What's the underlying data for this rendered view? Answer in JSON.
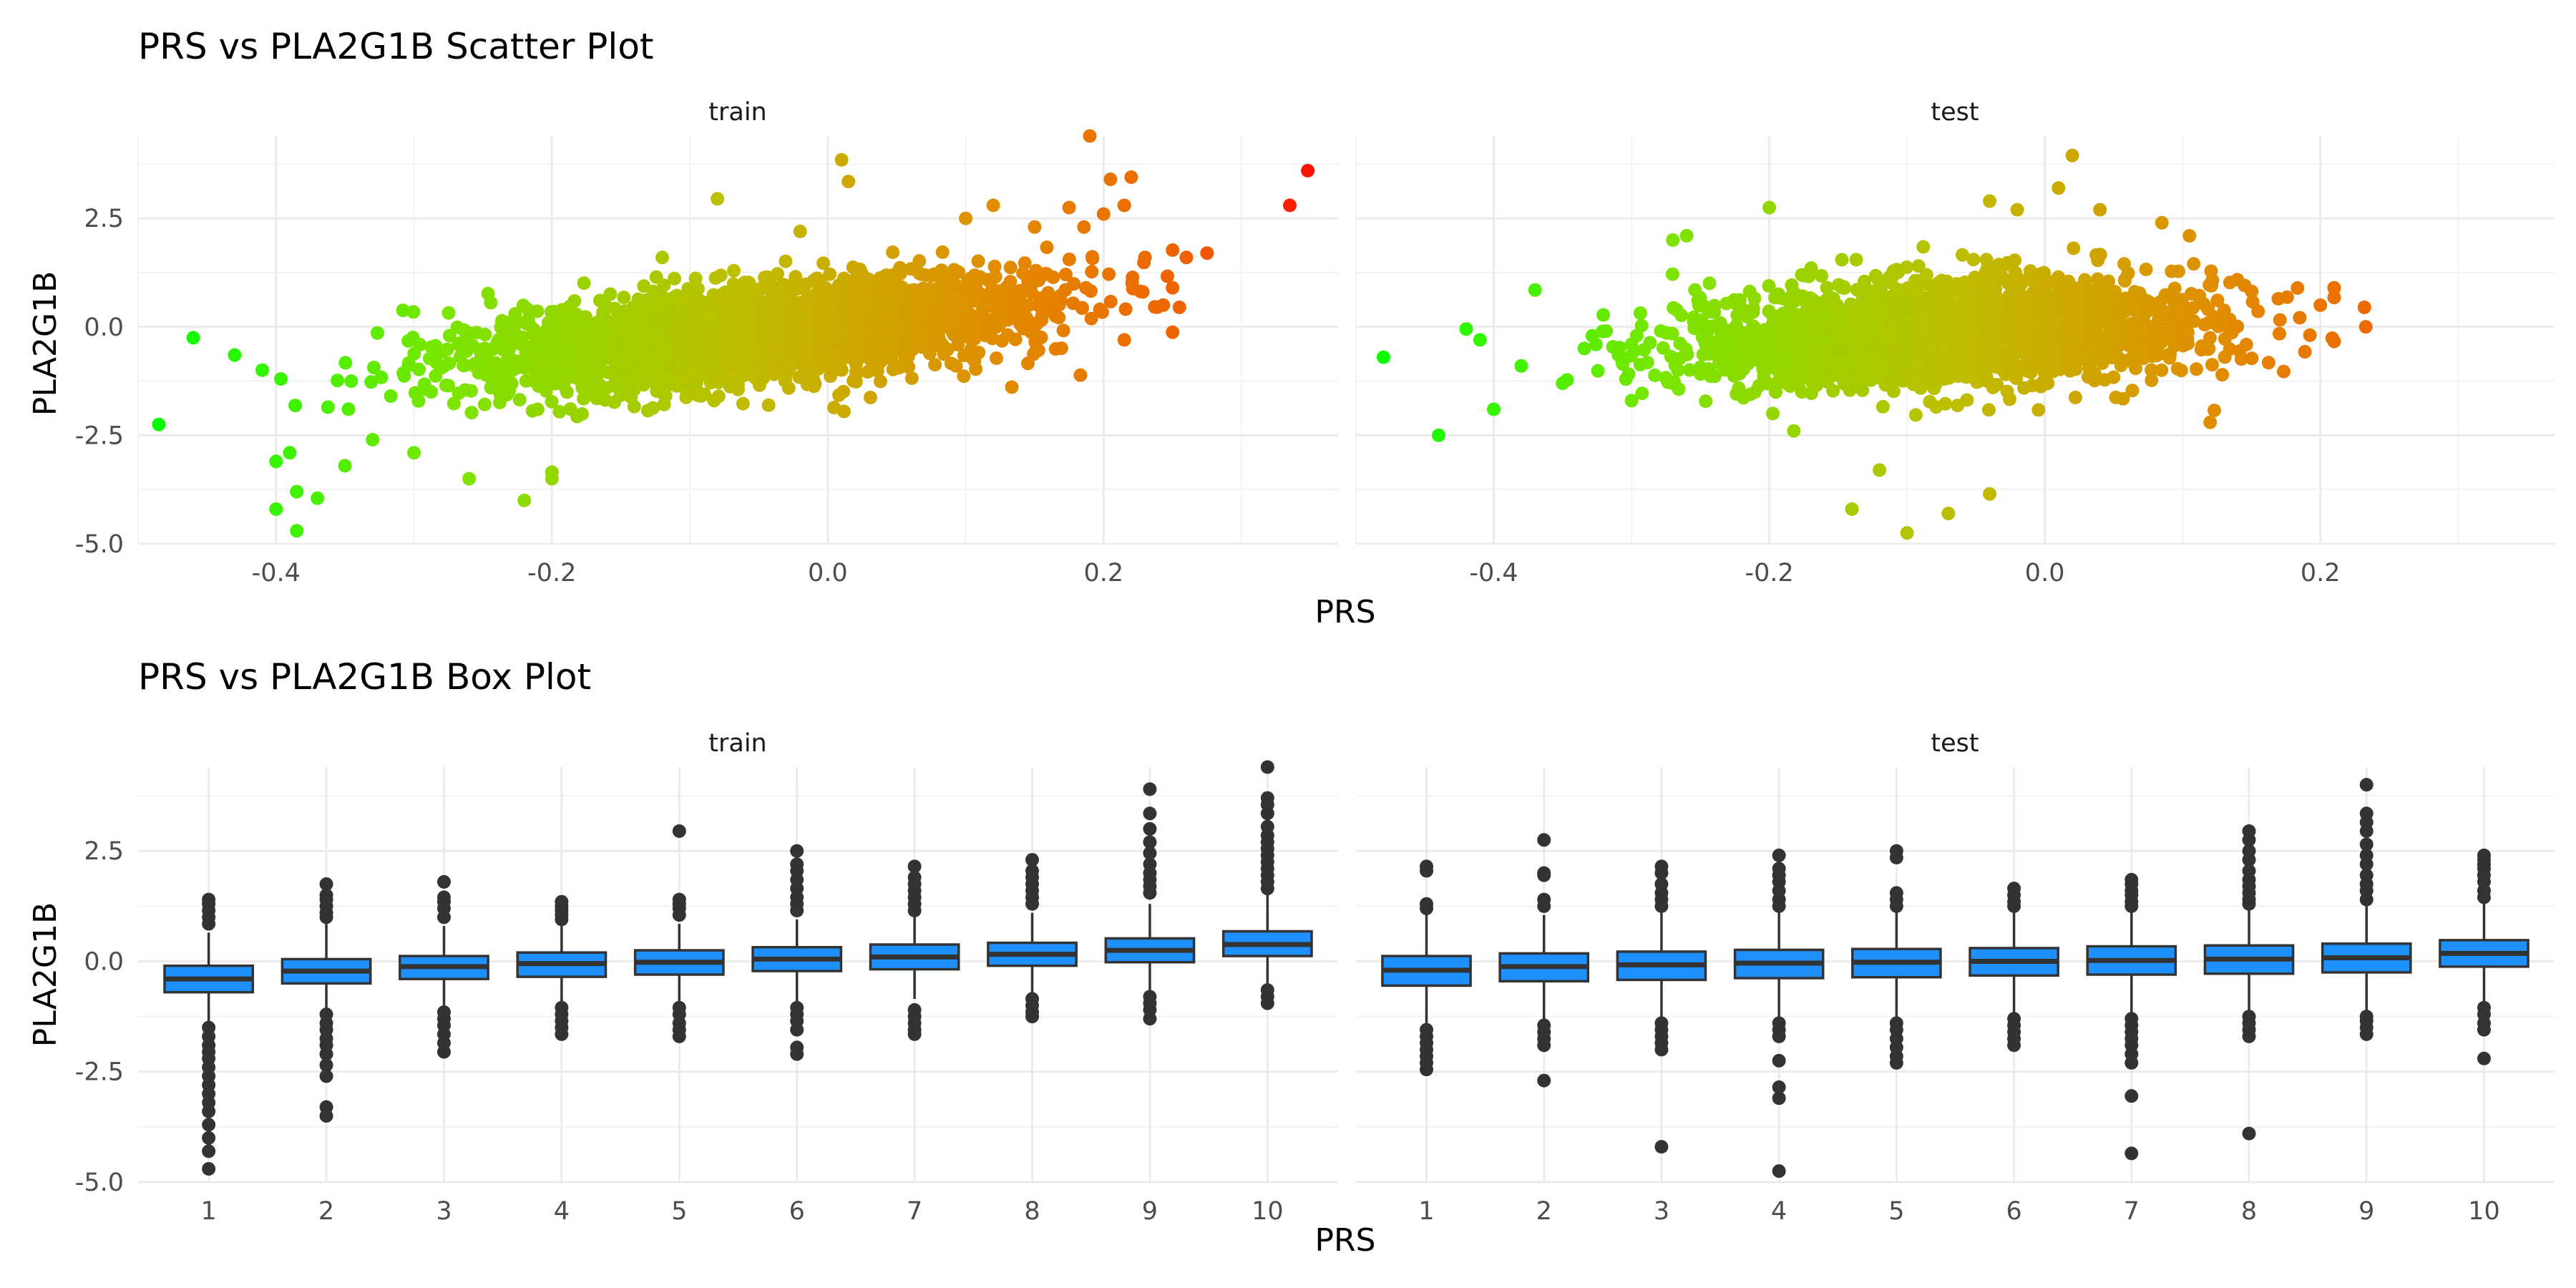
{
  "scatter_section": {
    "title": "PRS vs PLA2G1B Scatter Plot",
    "xlabel": "PRS",
    "ylabel": "PLA2G1B"
  },
  "box_section": {
    "title": "PRS vs PLA2G1B Box Plot",
    "xlabel": "PRS",
    "ylabel": "PLA2G1B"
  },
  "chart_data": [
    {
      "type": "scatter",
      "title": "PRS vs PLA2G1B Scatter Plot",
      "xlabel": "PRS",
      "ylabel": "PLA2G1B",
      "xlim": [
        -0.5,
        0.37
      ],
      "ylim": [
        -5.0,
        4.4
      ],
      "x_ticks": [
        -0.4,
        -0.2,
        0.0,
        0.2
      ],
      "y_ticks": [
        -5.0,
        -2.5,
        0.0,
        2.5
      ],
      "grid": true,
      "color_scale": {
        "low": "#00ff00",
        "high": "#ff0000",
        "mapped_to": "x"
      },
      "panels": [
        {
          "name": "train",
          "bulk": {
            "n": 2600,
            "x_mean": -0.05,
            "x_sd": 0.1,
            "x_min": -0.46,
            "x_max": 0.25,
            "slope": 2.9,
            "residual_sd": 0.55
          },
          "points": [
            [
              -0.485,
              -2.25
            ],
            [
              -0.46,
              -0.25
            ],
            [
              -0.43,
              -0.65
            ],
            [
              -0.41,
              -1.0
            ],
            [
              -0.4,
              -3.1
            ],
            [
              -0.39,
              -2.9
            ],
            [
              -0.4,
              -4.2
            ],
            [
              -0.385,
              -3.8
            ],
            [
              -0.385,
              -4.7
            ],
            [
              -0.37,
              -3.95
            ],
            [
              -0.35,
              -3.2
            ],
            [
              -0.33,
              -2.6
            ],
            [
              -0.3,
              -2.9
            ],
            [
              -0.26,
              -3.5
            ],
            [
              -0.22,
              -4.0
            ],
            [
              -0.2,
              -3.5
            ],
            [
              -0.2,
              -3.35
            ],
            [
              -0.08,
              2.95
            ],
            [
              0.01,
              3.85
            ],
            [
              0.015,
              3.35
            ],
            [
              0.19,
              4.4
            ],
            [
              0.205,
              3.4
            ],
            [
              0.22,
              3.45
            ],
            [
              0.2,
              2.6
            ],
            [
              0.215,
              2.8
            ],
            [
              0.175,
              2.75
            ],
            [
              0.26,
              1.6
            ],
            [
              0.275,
              1.7
            ],
            [
              0.25,
              0.9
            ],
            [
              0.255,
              0.45
            ],
            [
              0.23,
              1.6
            ],
            [
              0.215,
              -0.3
            ],
            [
              0.335,
              2.8
            ],
            [
              0.348,
              3.6
            ],
            [
              0.1,
              2.5
            ],
            [
              0.12,
              2.8
            ],
            [
              0.15,
              2.3
            ],
            [
              -0.02,
              2.2
            ],
            [
              -0.12,
              1.6
            ]
          ]
        },
        {
          "name": "test",
          "bulk": {
            "n": 2200,
            "x_mean": -0.07,
            "x_sd": 0.095,
            "x_min": -0.43,
            "x_max": 0.21,
            "slope": 1.5,
            "residual_sd": 0.6
          },
          "points": [
            [
              -0.48,
              -0.7
            ],
            [
              -0.44,
              -2.5
            ],
            [
              -0.42,
              -0.05
            ],
            [
              -0.4,
              -1.9
            ],
            [
              -0.41,
              -0.3
            ],
            [
              -0.38,
              -0.9
            ],
            [
              -0.37,
              0.85
            ],
            [
              -0.35,
              -1.3
            ],
            [
              -0.27,
              2.0
            ],
            [
              -0.26,
              2.1
            ],
            [
              -0.2,
              2.75
            ],
            [
              -0.14,
              -4.2
            ],
            [
              -0.12,
              -3.3
            ],
            [
              -0.1,
              -4.75
            ],
            [
              -0.07,
              -4.3
            ],
            [
              -0.04,
              -3.85
            ],
            [
              0.02,
              3.95
            ],
            [
              0.01,
              3.2
            ],
            [
              -0.04,
              2.9
            ],
            [
              -0.02,
              2.7
            ],
            [
              0.04,
              2.7
            ],
            [
              0.085,
              2.4
            ],
            [
              0.105,
              2.1
            ],
            [
              0.12,
              -2.2
            ],
            [
              0.2,
              0.5
            ],
            [
              0.232,
              0.45
            ],
            [
              0.233,
              0.0
            ],
            [
              -0.3,
              -1.7
            ],
            [
              -0.27,
              -1.3
            ]
          ]
        }
      ]
    },
    {
      "type": "box",
      "title": "PRS vs PLA2G1B Box Plot",
      "xlabel": "PRS",
      "ylabel": "PLA2G1B",
      "categories": [
        "1",
        "2",
        "3",
        "4",
        "5",
        "6",
        "7",
        "8",
        "9",
        "10"
      ],
      "ylim": [
        -5.0,
        4.4
      ],
      "y_ticks": [
        -5.0,
        -2.5,
        0.0,
        2.5
      ],
      "grid": true,
      "box_fill": "#1e90ff",
      "line_color": "#333333",
      "panels": [
        {
          "name": "train",
          "boxes": [
            {
              "q1": -0.7,
              "median": -0.4,
              "q3": -0.1,
              "lw": -1.35,
              "uw": 0.65,
              "outliers": [
                1.4,
                1.3,
                1.15,
                1.0,
                0.85,
                -1.5,
                -1.7,
                -1.9,
                -2.05,
                -2.2,
                -2.4,
                -2.6,
                -2.8,
                -3.0,
                -3.2,
                -3.4,
                -3.7,
                -4.0,
                -4.3,
                -4.7
              ]
            },
            {
              "q1": -0.5,
              "median": -0.22,
              "q3": 0.05,
              "lw": -1.05,
              "uw": 0.85,
              "outliers": [
                1.75,
                1.5,
                1.4,
                1.25,
                1.1,
                1.0,
                -1.2,
                -1.4,
                -1.55,
                -1.75,
                -1.9,
                -2.1,
                -2.35,
                -2.6,
                -3.3,
                -3.5
              ]
            },
            {
              "q1": -0.4,
              "median": -0.12,
              "q3": 0.12,
              "lw": -1.0,
              "uw": 0.8,
              "outliers": [
                1.8,
                1.45,
                1.35,
                1.2,
                1.0,
                -1.15,
                -1.3,
                -1.45,
                -1.65,
                -1.85,
                -2.05
              ]
            },
            {
              "q1": -0.35,
              "median": -0.05,
              "q3": 0.2,
              "lw": -0.95,
              "uw": 0.8,
              "outliers": [
                1.35,
                1.25,
                1.15,
                1.05,
                0.95,
                -1.05,
                -1.2,
                -1.35,
                -1.5,
                -1.65
              ]
            },
            {
              "q1": -0.3,
              "median": -0.02,
              "q3": 0.25,
              "lw": -0.95,
              "uw": 0.85,
              "outliers": [
                2.95,
                1.4,
                1.3,
                1.2,
                1.05,
                -1.05,
                -1.2,
                -1.4,
                -1.55,
                -1.7
              ]
            },
            {
              "q1": -0.22,
              "median": 0.05,
              "q3": 0.32,
              "lw": -0.9,
              "uw": 0.95,
              "outliers": [
                2.5,
                2.2,
                2.05,
                1.85,
                1.65,
                1.45,
                1.3,
                1.15,
                -1.05,
                -1.2,
                -1.35,
                -1.55,
                -1.95,
                -2.1
              ]
            },
            {
              "q1": -0.18,
              "median": 0.1,
              "q3": 0.38,
              "lw": -0.85,
              "uw": 1.0,
              "outliers": [
                2.15,
                1.9,
                1.75,
                1.6,
                1.45,
                1.3,
                1.15,
                -1.1,
                -1.25,
                -1.4,
                -1.55,
                -1.65
              ]
            },
            {
              "q1": -0.1,
              "median": 0.16,
              "q3": 0.42,
              "lw": -0.75,
              "uw": 1.1,
              "outliers": [
                2.3,
                2.05,
                1.9,
                1.75,
                1.6,
                1.45,
                1.3,
                -0.85,
                -1.0,
                -1.15,
                -1.25
              ]
            },
            {
              "q1": -0.02,
              "median": 0.25,
              "q3": 0.52,
              "lw": -0.8,
              "uw": 1.3,
              "outliers": [
                3.9,
                3.35,
                3.0,
                2.7,
                2.45,
                2.2,
                2.0,
                1.85,
                1.7,
                1.55,
                -0.8,
                -0.95,
                -1.1,
                -1.3
              ]
            },
            {
              "q1": 0.12,
              "median": 0.38,
              "q3": 0.68,
              "lw": -0.5,
              "uw": 1.5,
              "outliers": [
                4.4,
                3.7,
                3.55,
                3.35,
                3.05,
                2.85,
                2.7,
                2.55,
                2.4,
                2.25,
                2.1,
                1.95,
                1.8,
                1.65,
                -0.65,
                -0.8,
                -0.95
              ]
            }
          ]
        },
        {
          "name": "test",
          "boxes": [
            {
              "q1": -0.55,
              "median": -0.2,
              "q3": 0.12,
              "lw": -1.45,
              "uw": 1.05,
              "outliers": [
                2.15,
                2.05,
                1.3,
                1.2,
                -1.55,
                -1.7,
                -1.85,
                -2.0,
                -2.15,
                -2.3,
                -2.45
              ]
            },
            {
              "q1": -0.45,
              "median": -0.12,
              "q3": 0.18,
              "lw": -1.35,
              "uw": 1.05,
              "outliers": [
                2.75,
                2.0,
                1.95,
                1.4,
                1.25,
                -1.45,
                -1.6,
                -1.75,
                -1.9,
                -2.7
              ]
            },
            {
              "q1": -0.42,
              "median": -0.08,
              "q3": 0.22,
              "lw": -1.3,
              "uw": 1.1,
              "outliers": [
                2.15,
                2.0,
                1.75,
                1.55,
                1.4,
                1.25,
                -1.4,
                -1.55,
                -1.7,
                -1.85,
                -2.0,
                -4.2
              ]
            },
            {
              "q1": -0.38,
              "median": -0.04,
              "q3": 0.26,
              "lw": -1.3,
              "uw": 1.15,
              "outliers": [
                2.4,
                2.1,
                1.95,
                1.8,
                1.6,
                1.4,
                1.25,
                -1.4,
                -1.55,
                -1.7,
                -2.25,
                -2.85,
                -3.1,
                -4.75
              ]
            },
            {
              "q1": -0.36,
              "median": -0.02,
              "q3": 0.28,
              "lw": -1.25,
              "uw": 1.15,
              "outliers": [
                2.5,
                2.35,
                1.55,
                1.4,
                1.25,
                -1.4,
                -1.55,
                -1.75,
                -1.95,
                -2.15,
                -2.3
              ]
            },
            {
              "q1": -0.32,
              "median": 0.0,
              "q3": 0.3,
              "lw": -1.2,
              "uw": 1.15,
              "outliers": [
                1.65,
                1.5,
                1.35,
                1.25,
                -1.3,
                -1.45,
                -1.6,
                -1.75,
                -1.9
              ]
            },
            {
              "q1": -0.3,
              "median": 0.02,
              "q3": 0.34,
              "lw": -1.2,
              "uw": 1.2,
              "outliers": [
                1.85,
                1.75,
                1.6,
                1.5,
                1.35,
                1.25,
                -1.3,
                -1.45,
                -1.6,
                -1.75,
                -1.9,
                -2.1,
                -2.3,
                -3.05,
                -4.35
              ]
            },
            {
              "q1": -0.28,
              "median": 0.05,
              "q3": 0.36,
              "lw": -1.15,
              "uw": 1.2,
              "outliers": [
                2.95,
                2.75,
                2.5,
                2.3,
                2.05,
                1.85,
                1.7,
                1.55,
                1.4,
                1.3,
                -1.25,
                -1.4,
                -1.55,
                -1.7,
                -3.9
              ]
            },
            {
              "q1": -0.25,
              "median": 0.08,
              "q3": 0.4,
              "lw": -1.15,
              "uw": 1.25,
              "outliers": [
                4.0,
                3.35,
                3.15,
                2.95,
                2.65,
                2.4,
                2.2,
                1.95,
                1.75,
                1.6,
                1.4,
                -1.25,
                -1.35,
                -1.5,
                -1.65
              ]
            },
            {
              "q1": -0.12,
              "median": 0.18,
              "q3": 0.48,
              "lw": -0.95,
              "uw": 1.35,
              "outliers": [
                2.4,
                2.3,
                2.2,
                2.1,
                1.95,
                1.8,
                1.6,
                1.45,
                -1.05,
                -1.2,
                -1.4,
                -1.55,
                -2.2
              ]
            }
          ]
        }
      ]
    }
  ]
}
